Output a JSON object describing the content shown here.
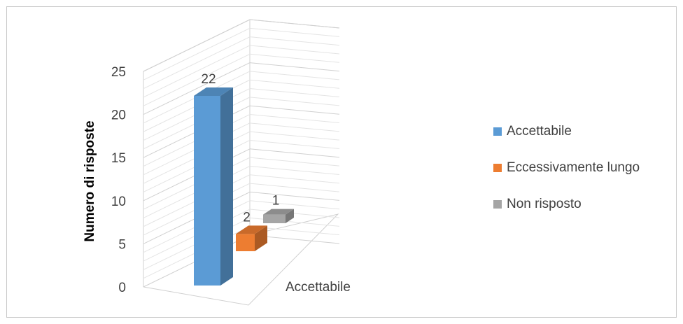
{
  "chart_data": {
    "type": "bar",
    "subtype": "3d-clustered-column",
    "categories": [
      "Accettabile"
    ],
    "series": [
      {
        "name": "Accettabile",
        "values": [
          22
        ],
        "color": "#5b9bd5"
      },
      {
        "name": "Eccessivamente lungo",
        "values": [
          2
        ],
        "color": "#ed7d31"
      },
      {
        "name": "Non risposto",
        "values": [
          1
        ],
        "color": "#a5a5a5"
      }
    ],
    "ylabel": "Numero di risposte",
    "ylim": [
      0,
      25
    ],
    "yticks": [
      0,
      5,
      10,
      15,
      20,
      25
    ],
    "grid": true,
    "legend_position": "right",
    "data_labels": true
  }
}
